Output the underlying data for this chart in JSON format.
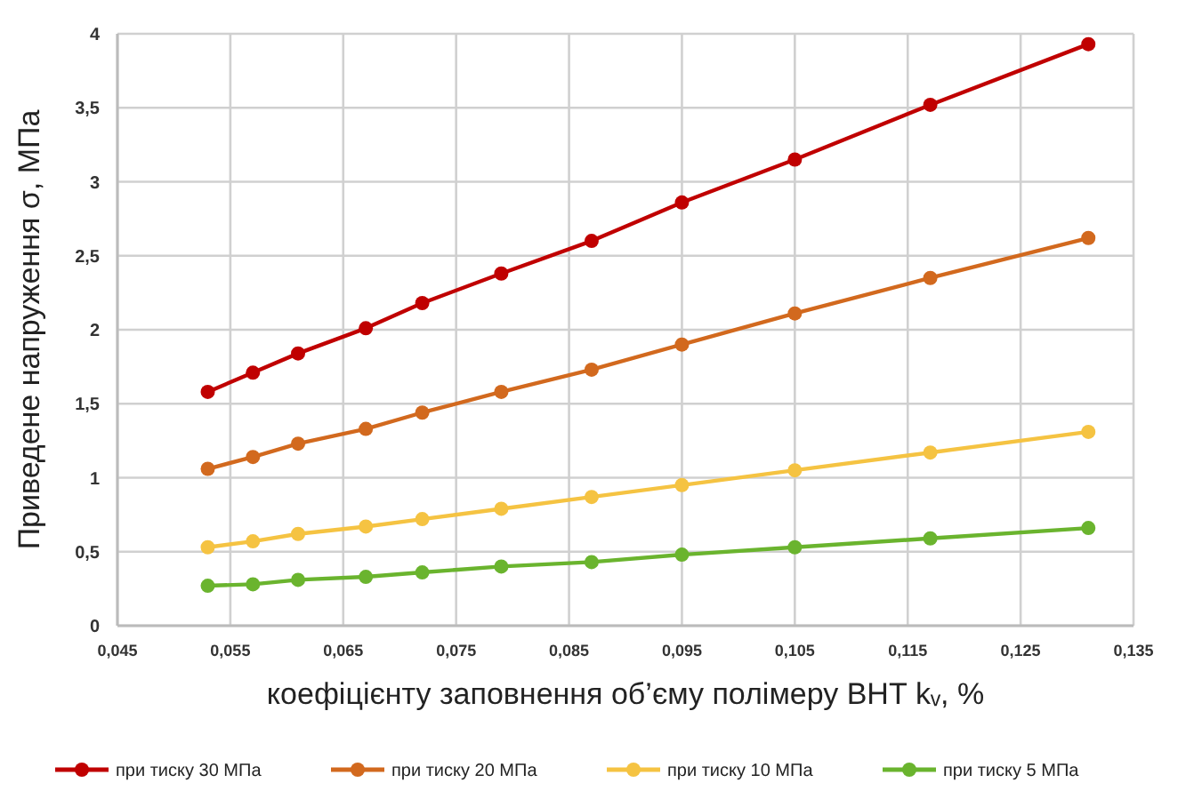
{
  "chart_data": {
    "type": "line",
    "xlabel": "коефіцієнту заповнення об’єму полімеру ВНТ kᵥ, %",
    "ylabel": "Приведене напруження σ, МПа",
    "x": [
      0.053,
      0.057,
      0.061,
      0.067,
      0.072,
      0.079,
      0.087,
      0.095,
      0.105,
      0.117,
      0.131
    ],
    "series": [
      {
        "name": "при тиску 30 МПа",
        "color": "#c00000",
        "values": [
          1.58,
          1.71,
          1.84,
          2.01,
          2.18,
          2.38,
          2.6,
          2.86,
          3.15,
          3.52,
          3.93
        ]
      },
      {
        "name": "при тиску 20 МПа",
        "color": "#d2691e",
        "values": [
          1.06,
          1.14,
          1.23,
          1.33,
          1.44,
          1.58,
          1.73,
          1.9,
          2.11,
          2.35,
          2.62
        ]
      },
      {
        "name": "при тиску 10 МПа",
        "color": "#f5c342",
        "values": [
          0.53,
          0.57,
          0.62,
          0.67,
          0.72,
          0.79,
          0.87,
          0.95,
          1.05,
          1.17,
          1.31
        ]
      },
      {
        "name": "при тиску 5 МПа",
        "color": "#6ab42e",
        "values": [
          0.27,
          0.28,
          0.31,
          0.33,
          0.36,
          0.4,
          0.43,
          0.48,
          0.53,
          0.59,
          0.66
        ]
      }
    ],
    "xlim": [
      0.045,
      0.135
    ],
    "xticks": [
      {
        "value": 0.045,
        "label": "0,045"
      },
      {
        "value": 0.055,
        "label": "0,055"
      },
      {
        "value": 0.065,
        "label": "0,065"
      },
      {
        "value": 0.075,
        "label": "0,075"
      },
      {
        "value": 0.085,
        "label": "0,085"
      },
      {
        "value": 0.095,
        "label": "0,095"
      },
      {
        "value": 0.105,
        "label": "0,105"
      },
      {
        "value": 0.115,
        "label": "0,115"
      },
      {
        "value": 0.125,
        "label": "0,125"
      },
      {
        "value": 0.135,
        "label": "0,135"
      }
    ],
    "ylim": [
      0,
      4
    ],
    "yticks": [
      0,
      {
        "value": 0.5,
        "label": "0,5"
      },
      1,
      {
        "value": 1.5,
        "label": "1,5"
      },
      2,
      {
        "value": 2.5,
        "label": "2,5"
      },
      3,
      {
        "value": 3.5,
        "label": "3,5"
      },
      4
    ],
    "grid": true,
    "legend": "bottom",
    "marker": "circle",
    "line_style": "solid"
  }
}
